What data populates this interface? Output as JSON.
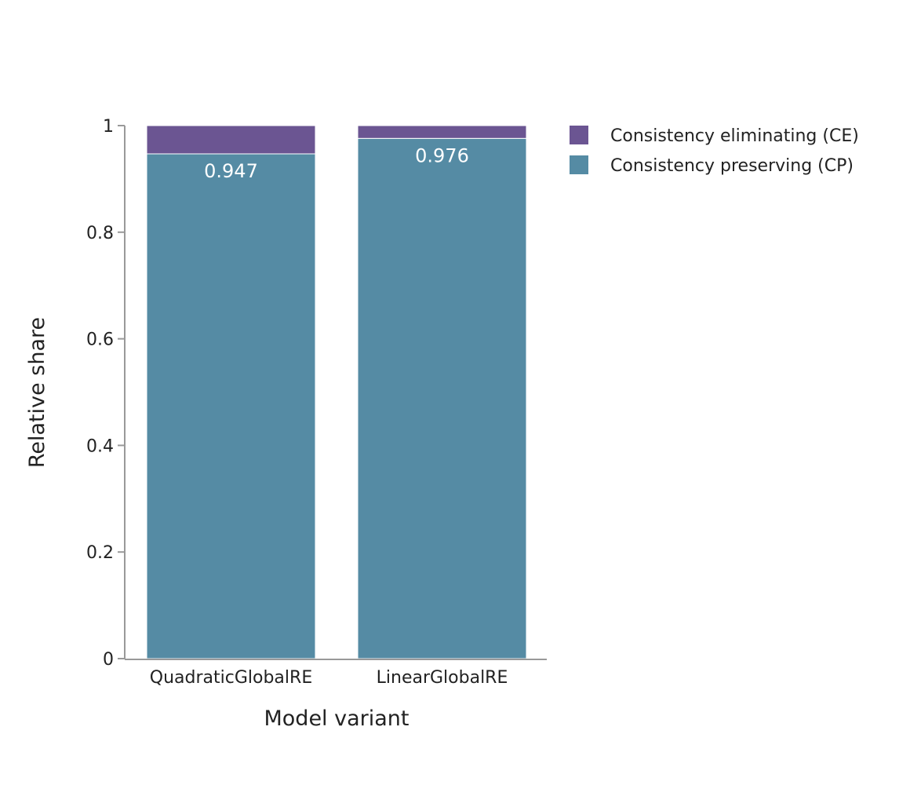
{
  "chart_data": {
    "type": "bar",
    "stacked": true,
    "categories": [
      "QuadraticGlobalRE",
      "LinearGlobalRE"
    ],
    "series": [
      {
        "name": "Consistency preserving (CP)",
        "values": [
          0.947,
          0.976
        ],
        "color": "#558ba4",
        "data_labels": [
          "0.947",
          "0.976"
        ]
      },
      {
        "name": "Consistency eliminating (CE)",
        "values": [
          0.053,
          0.024
        ],
        "color": "#6b5592"
      }
    ],
    "xlabel": "Model variant",
    "ylabel": "Relative share",
    "ylim": [
      0,
      1
    ],
    "yticks": [
      0,
      0.2,
      0.4,
      0.6,
      0.8,
      1
    ],
    "ytick_labels": [
      "0",
      "0.2",
      "0.4",
      "0.6",
      "0.8",
      "1"
    ],
    "grid": false,
    "legend": {
      "placement": "right-top",
      "entries": [
        "Consistency eliminating (CE)",
        "Consistency preserving (CP)"
      ]
    },
    "axis_color": "#999999"
  }
}
